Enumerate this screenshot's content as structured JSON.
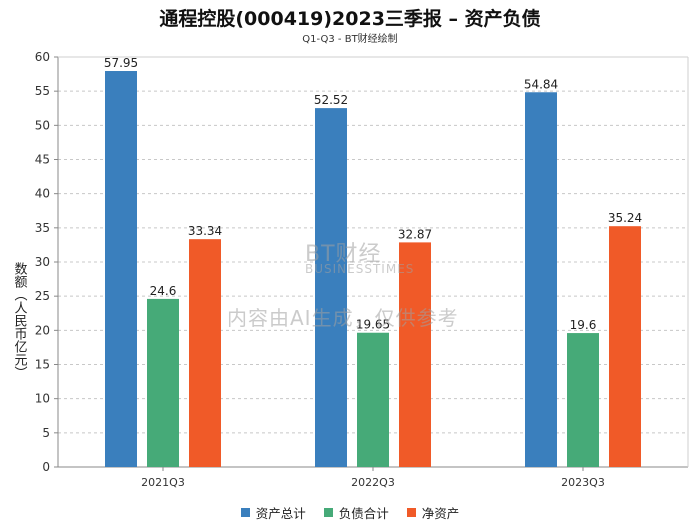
{
  "chart_data": {
    "type": "bar",
    "title": "通程控股(000419)2023三季报 – 资产负债",
    "subtitle": "Q1-Q3 - BT财经绘制",
    "xlabel": "",
    "ylabel": "数额（人民币亿元）",
    "ylim": [
      0,
      60
    ],
    "yticks": [
      0,
      5,
      10,
      15,
      20,
      25,
      30,
      35,
      40,
      45,
      50,
      55,
      60
    ],
    "grid": true,
    "legend_position": "bottom-center",
    "categories": [
      "2021Q3",
      "2022Q3",
      "2023Q3"
    ],
    "series": [
      {
        "name": "资产总计",
        "color": "#3a7fbd",
        "values": [
          57.95,
          52.52,
          54.84
        ],
        "labels": [
          "57.95",
          "52.52",
          "54.84"
        ]
      },
      {
        "name": "负债合计",
        "color": "#46aa78",
        "values": [
          24.6,
          19.65,
          19.6
        ],
        "labels": [
          "24.6",
          "19.65",
          "19.6"
        ]
      },
      {
        "name": "净资产",
        "color": "#f05a28",
        "values": [
          33.34,
          32.87,
          35.24
        ],
        "labels": [
          "33.34",
          "32.87",
          "35.24"
        ]
      }
    ]
  },
  "watermark": {
    "brand": "BT财经",
    "brand_en": "BUSINESSTIMES",
    "notice": "内容由AI生成，仅供参考"
  }
}
